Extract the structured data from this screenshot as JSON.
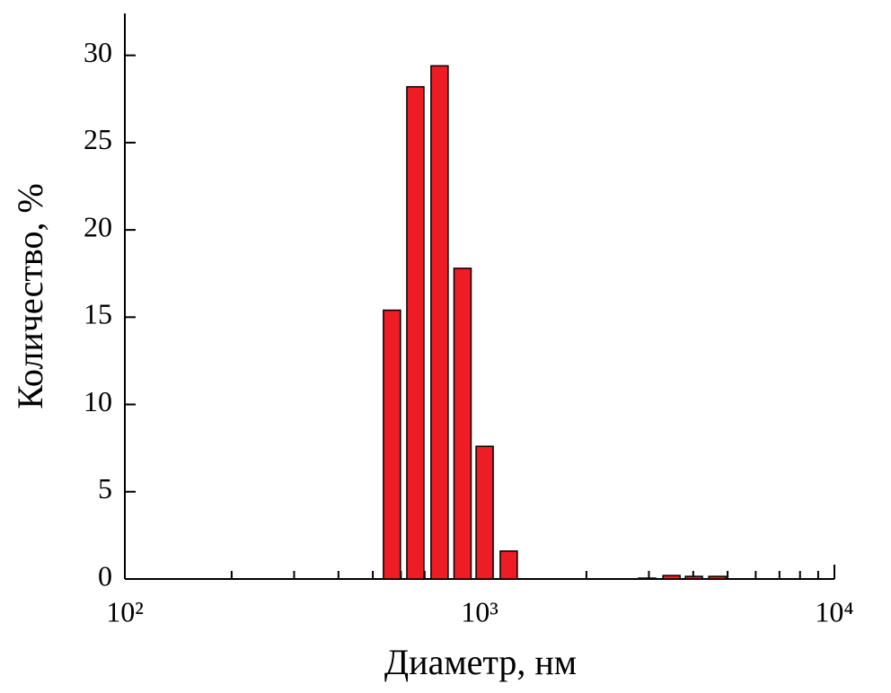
{
  "chart_data": {
    "type": "bar",
    "x_label": "Диаметр, нм",
    "y_label": "Количество, %",
    "x": [
      566,
      659,
      771,
      895,
      1033,
      1208,
      2965,
      3474,
      4018,
      4677
    ],
    "values": [
      15.4,
      28.2,
      29.4,
      17.8,
      7.6,
      1.6,
      0.05,
      0.2,
      0.15,
      0.15
    ],
    "color": "#ee1c25",
    "xscale": "log",
    "xlim": [
      100,
      10000
    ],
    "xticks": [
      {
        "value": 100,
        "label": "10²"
      },
      {
        "value": 1000,
        "label": "10³"
      },
      {
        "value": 10000,
        "label": "10⁴"
      }
    ],
    "xminor_ticks": [
      200,
      300,
      400,
      500,
      600,
      700,
      800,
      900,
      2000,
      3000,
      4000,
      5000,
      6000,
      7000,
      8000,
      9000
    ],
    "ylim": [
      0,
      32.4
    ],
    "yticks": [
      0,
      5,
      10,
      15,
      20,
      25,
      30
    ],
    "grid": false
  }
}
